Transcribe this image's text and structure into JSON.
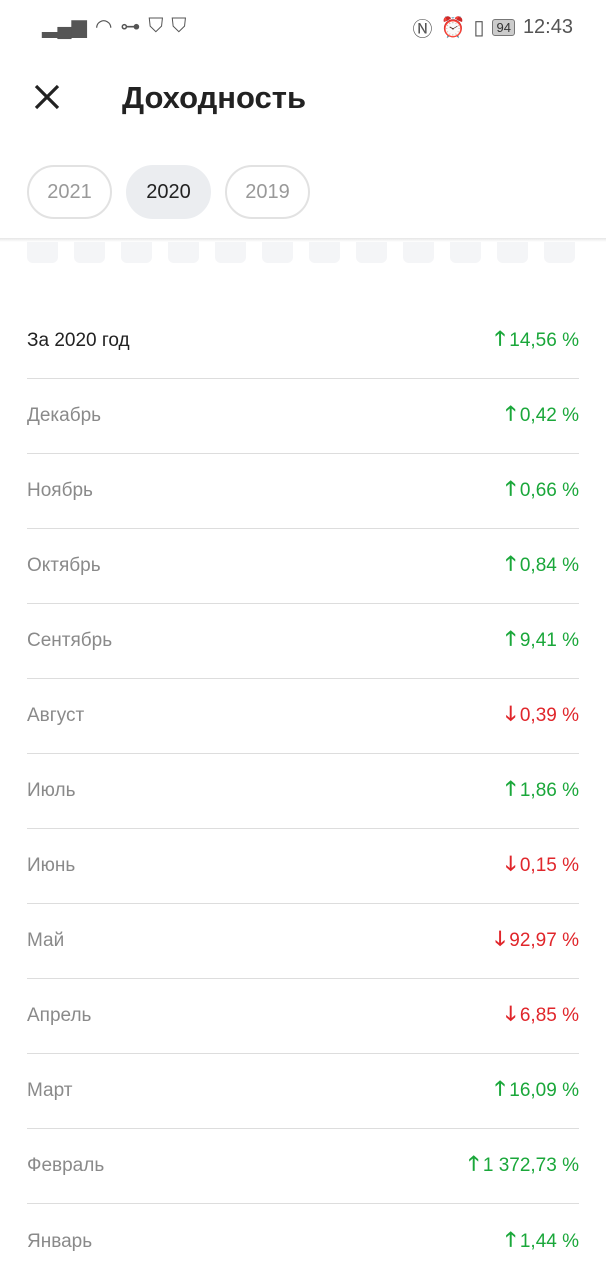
{
  "status_bar": {
    "time": "12:43",
    "battery": "94"
  },
  "header": {
    "title": "Доходность"
  },
  "year_tabs": [
    {
      "label": "2021",
      "active": false
    },
    {
      "label": "2020",
      "active": true
    },
    {
      "label": "2019",
      "active": false
    }
  ],
  "colors": {
    "up": "#1aa73a",
    "down": "#e0262b"
  },
  "rows": [
    {
      "label": "За 2020 год",
      "value": "14,56 %",
      "direction": "up"
    },
    {
      "label": "Декабрь",
      "value": "0,42 %",
      "direction": "up"
    },
    {
      "label": "Ноябрь",
      "value": "0,66 %",
      "direction": "up"
    },
    {
      "label": "Октябрь",
      "value": "0,84 %",
      "direction": "up"
    },
    {
      "label": "Сентябрь",
      "value": "9,41 %",
      "direction": "up"
    },
    {
      "label": "Август",
      "value": "0,39 %",
      "direction": "down"
    },
    {
      "label": "Июль",
      "value": "1,86 %",
      "direction": "up"
    },
    {
      "label": "Июнь",
      "value": "0,15 %",
      "direction": "down"
    },
    {
      "label": "Май",
      "value": "92,97 %",
      "direction": "down"
    },
    {
      "label": "Апрель",
      "value": "6,85 %",
      "direction": "down"
    },
    {
      "label": "Март",
      "value": "16,09 %",
      "direction": "up"
    },
    {
      "label": "Февраль",
      "value": "1 372,73 %",
      "direction": "up"
    },
    {
      "label": "Январь",
      "value": "1,44 %",
      "direction": "up"
    }
  ]
}
